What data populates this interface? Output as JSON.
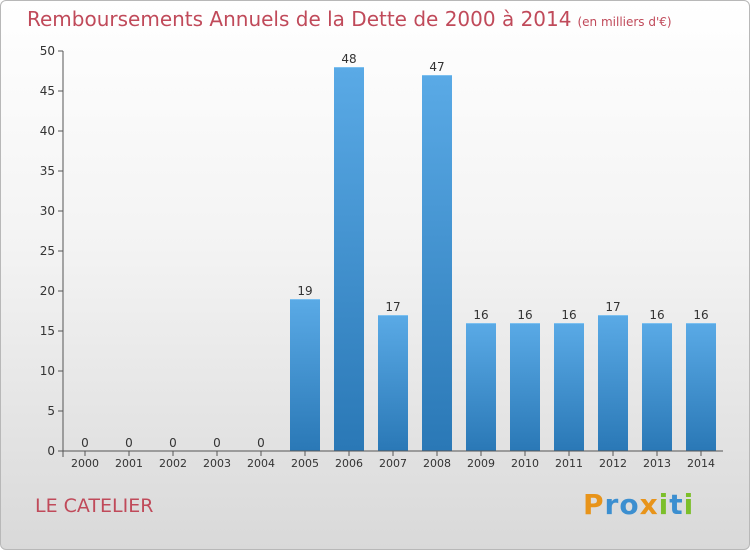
{
  "chart_data": {
    "type": "bar",
    "title": "Remboursements Annuels de la Dette de 2000 à 2014",
    "subtitle": "(en milliers d'€)",
    "categories": [
      "2000",
      "2001",
      "2002",
      "2003",
      "2004",
      "2005",
      "2006",
      "2007",
      "2008",
      "2009",
      "2010",
      "2011",
      "2012",
      "2013",
      "2014"
    ],
    "values": [
      0,
      0,
      0,
      0,
      0,
      19,
      48,
      17,
      47,
      16,
      16,
      16,
      17,
      16,
      16
    ],
    "ylim": [
      0,
      50
    ],
    "yticks": [
      0,
      5,
      10,
      15,
      20,
      25,
      30,
      35,
      40,
      45,
      50
    ],
    "grid": false,
    "bar_color_top": "#5aaae6",
    "bar_color_bottom": "#2a78b6"
  },
  "place": "LE CATELIER",
  "brand": {
    "letters": [
      "P",
      "r",
      "o",
      "x",
      "i",
      "t",
      "i"
    ],
    "colors": [
      "#e8941a",
      "#3c8fd0",
      "#3c8fd0",
      "#e8941a",
      "#7cbf2a",
      "#3c8fd0",
      "#7cbf2a"
    ]
  }
}
